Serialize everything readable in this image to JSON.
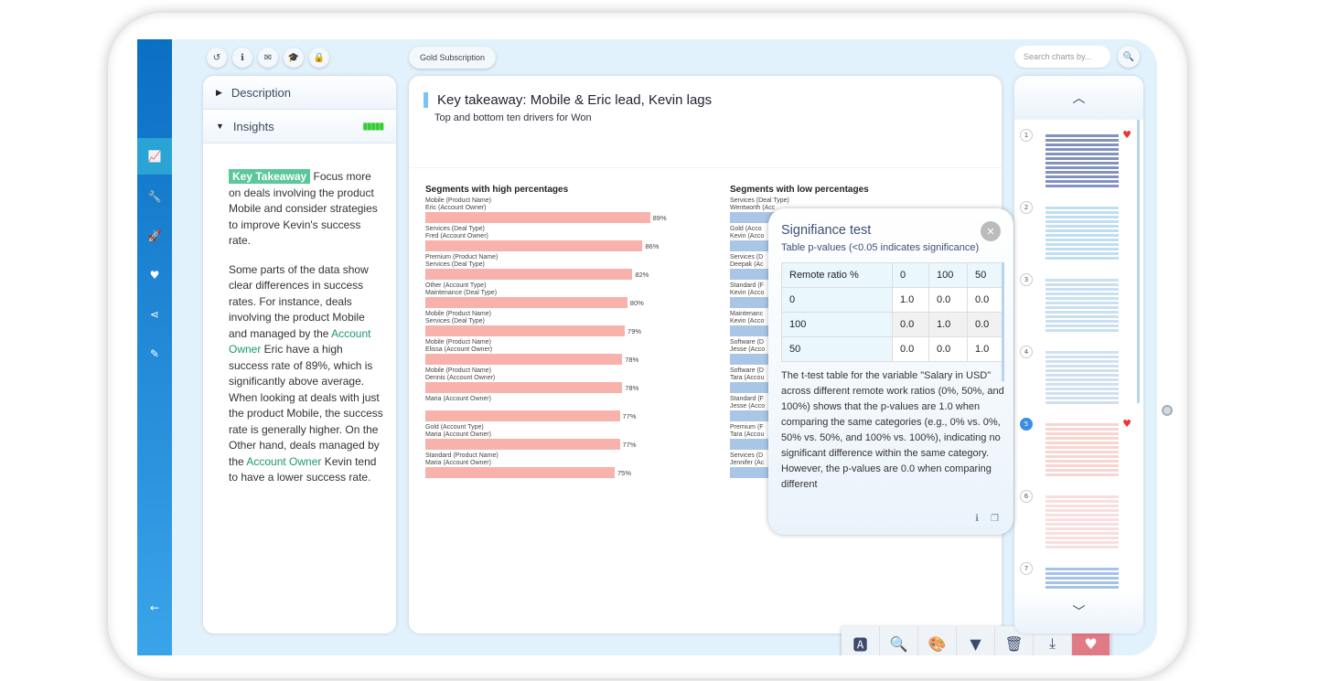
{
  "toolbar": {
    "icons": [
      "history-icon",
      "info-icon",
      "mail-icon",
      "graduation-cap-icon",
      "lock-icon"
    ],
    "subscription": "Gold Subscription",
    "search_placeholder": "Search charts by..."
  },
  "sidebar": {
    "icons": [
      "chart-line-icon",
      "wrench-icon",
      "rocket-icon",
      "heart-icon",
      "share-icon",
      "edit-icon",
      "arrow-left-icon"
    ]
  },
  "left_panel": {
    "description": "Description",
    "insights": "Insights",
    "insights_level": "5/5",
    "p1_badge": "Key Takeaway",
    "p1": " Focus more on deals involving the product Mobile and consider strategies to improve Kevin's success rate.",
    "p2a": "Some parts of the data show clear differences in success rates. For instance, deals involving the product Mobile and managed by the ",
    "p2_link1": "Account Owner",
    "p2b": " Eric have a high success rate of 89%, which is significantly above average. When looking at deals with just the product Mobile, the success rate is generally higher. On the Other hand, deals managed by the ",
    "p2_link2": "Account Owner",
    "p2c": " Kevin tend to have a lower success rate."
  },
  "main": {
    "title": "Key takeaway: Mobile & Eric lead, Kevin lags",
    "subtitle": "Top and bottom ten drivers for Won"
  },
  "chart_data": [
    {
      "type": "bar",
      "orientation": "horizontal",
      "title": "Segments with high percentages",
      "color": "#f8b1ab",
      "unit": "%",
      "categories": [
        [
          "Mobile (Product Name)",
          "Eric (Account Owner)"
        ],
        [
          "Services (Deal Type)",
          "Fred (Account Owner)"
        ],
        [
          "Premium (Product Name)",
          "Services (Deal Type)"
        ],
        [
          "Other (Account Type)",
          "Maintenance (Deal Type)"
        ],
        [
          "Mobile (Product Name)",
          "Services (Deal Type)"
        ],
        [
          "Mobile (Product Name)",
          "Elissa (Account Owner)"
        ],
        [
          "Mobile (Product Name)",
          "Dennis (Account Owner)"
        ],
        [
          "",
          "Maria (Account Owner)"
        ],
        [
          "Gold (Account Type)",
          "Maria (Account Owner)"
        ],
        [
          "Standard (Product Name)",
          "Maria (Account Owner)"
        ]
      ],
      "values": [
        89,
        86,
        82,
        80,
        79,
        78,
        78,
        77,
        77,
        75
      ]
    },
    {
      "type": "bar",
      "orientation": "horizontal",
      "title": "Segments with low percentages",
      "color": "#a9c6e6",
      "categories": [
        [
          "Services (Deal Type)",
          "Wentworth (Acc"
        ],
        [
          "Gold (Acco",
          "Kevin (Acco"
        ],
        [
          "Services (D",
          "Deepak (Ac"
        ],
        [
          "Standard (F",
          "Kevin (Acco"
        ],
        [
          "Maintenanc",
          "Kevin (Acco"
        ],
        [
          "Software (D",
          "Jesse (Acco"
        ],
        [
          "Software (D",
          "Tara (Accou"
        ],
        [
          "Standard (F",
          "Jesse (Acco"
        ],
        [
          "Premium (F",
          "Tara (Accou"
        ],
        [
          "Services (D",
          "Jennifer (Ac"
        ]
      ]
    }
  ],
  "popup": {
    "title": "Signifiance test",
    "subtitle": "Table p-values (<0.05 indicates significance)",
    "header": [
      "Remote ratio %",
      "0",
      "100",
      "50"
    ],
    "rows": [
      [
        "0",
        "1.0",
        "0.0",
        "0.0"
      ],
      [
        "100",
        "0.0",
        "1.0",
        "0.0"
      ],
      [
        "50",
        "0.0",
        "0.0",
        "1.0"
      ]
    ],
    "text": "The t-test table for the variable \"Salary in USD\" across different remote work ratios (0%, 50%, and 100%) shows that the p-values are 1.0 when comparing the same categories (e.g., 0% vs. 0%, 50% vs. 50%, and 100% vs. 100%), indicating no significant difference within the same category. However, the p-values are 0.0 when comparing different"
  },
  "thumbnails": [
    {
      "n": "1",
      "fav": true
    },
    {
      "n": "2",
      "fav": false
    },
    {
      "n": "3",
      "fav": false
    },
    {
      "n": "4",
      "fav": false
    },
    {
      "n": "5",
      "fav": true,
      "selected": true
    },
    {
      "n": "6",
      "fav": false
    },
    {
      "n": "7",
      "fav": false
    }
  ],
  "bottom_toolbar": [
    "ai-icon",
    "analysis-icon",
    "palette-icon",
    "filter-icon",
    "trash-icon",
    "download-icon",
    "heart-icon"
  ],
  "colors": {
    "sidebar": "#0b6fc4",
    "accent": "#5bc79a",
    "favorite": "#e07a85"
  }
}
